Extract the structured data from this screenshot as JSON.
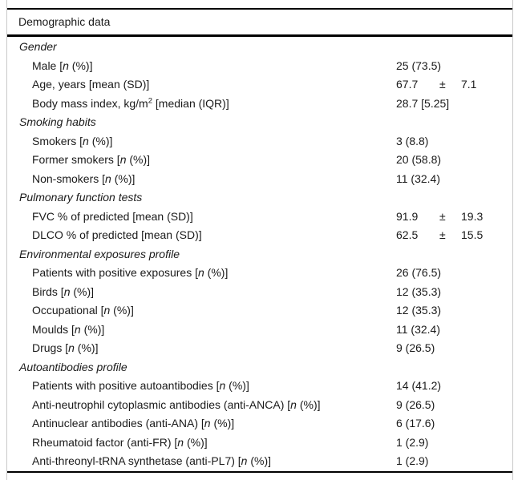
{
  "table": {
    "title": "Demographic data",
    "plus_minus_symbol": "±",
    "sections": [
      {
        "header": "Gender",
        "rows": [
          {
            "label": "Male [*n* (%)]",
            "value": "25 (73.5)"
          },
          {
            "label": "Age, years [mean (SD)]",
            "value": {
              "mean": "67.7",
              "pm": "±",
              "sd": "7.1"
            }
          },
          {
            "label": "Body mass index, kg/m^2^ [median (IQR)]",
            "value": "28.7 [5.25]"
          }
        ]
      },
      {
        "header": "Smoking habits",
        "rows": [
          {
            "label": "Smokers [*n* (%)]",
            "value": "3 (8.8)"
          },
          {
            "label": "Former smokers [*n* (%)]",
            "value": "20 (58.8)"
          },
          {
            "label": "Non-smokers [*n* (%)]",
            "value": "11 (32.4)"
          }
        ]
      },
      {
        "header": "Pulmonary function tests",
        "rows": [
          {
            "label": "FVC % of predicted [mean (SD)]",
            "value": {
              "mean": "91.9",
              "pm": "±",
              "sd": "19.3"
            }
          },
          {
            "label": "DLCO % of predicted [mean (SD)]",
            "value": {
              "mean": "62.5",
              "pm": "±",
              "sd": "15.5"
            }
          }
        ]
      },
      {
        "header": "Environmental exposures profile",
        "rows": [
          {
            "label": "Patients with positive exposures [*n* (%)]",
            "value": "26 (76.5)"
          },
          {
            "label": "Birds [*n* (%)]",
            "value": "12 (35.3)"
          },
          {
            "label": "Occupational [*n* (%)]",
            "value": "12 (35.3)"
          },
          {
            "label": "Moulds [*n* (%)]",
            "value": "11 (32.4)"
          },
          {
            "label": "Drugs [*n* (%)]",
            "value": "9 (26.5)"
          }
        ]
      },
      {
        "header": "Autoantibodies profile",
        "rows": [
          {
            "label": "Patients with positive autoantibodies [*n* (%)]",
            "value": "14 (41.2)"
          },
          {
            "label": "Anti-neutrophil cytoplasmic antibodies (anti-ANCA) [*n* (%)]",
            "value": "9 (26.5)"
          },
          {
            "label": "Antinuclear antibodies (anti-ANA) [*n* (%)]",
            "value": "6 (17.6)"
          },
          {
            "label": "Rheumatoid factor (anti-FR) [*n* (%)]",
            "value": "1 (2.9)"
          },
          {
            "label": "Anti-threonyl-tRNA synthetase (anti-PL7) [*n* (%)]",
            "value": "1 (2.9)"
          }
        ]
      }
    ]
  }
}
